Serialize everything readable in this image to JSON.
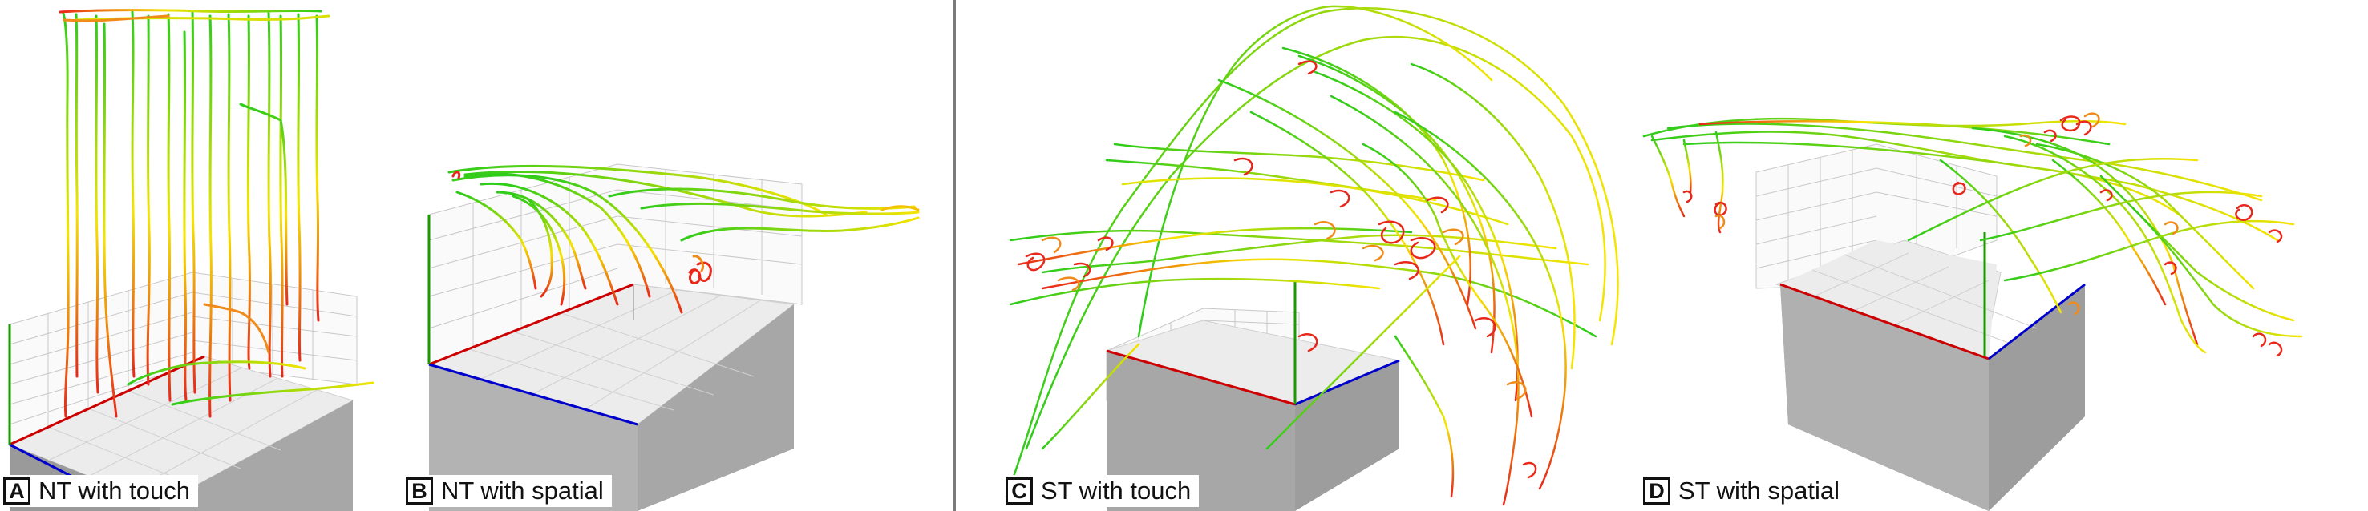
{
  "panels": [
    {
      "letter": "A",
      "caption": "NT with touch"
    },
    {
      "letter": "B",
      "caption": "NT with spatial"
    },
    {
      "letter": "C",
      "caption": "ST with touch"
    },
    {
      "letter": "D",
      "caption": "ST with spatial"
    }
  ],
  "colors": {
    "trajectory_start": "#2ecc1a",
    "trajectory_mid": "#f5e400",
    "trajectory_end": "#e8281a",
    "axis_x": "#cc0000",
    "axis_y": "#1a9900",
    "axis_z": "#0000cc",
    "box_side": "#a7a7a7",
    "box_top": "#ececec",
    "divider": "#7a7a7a"
  }
}
